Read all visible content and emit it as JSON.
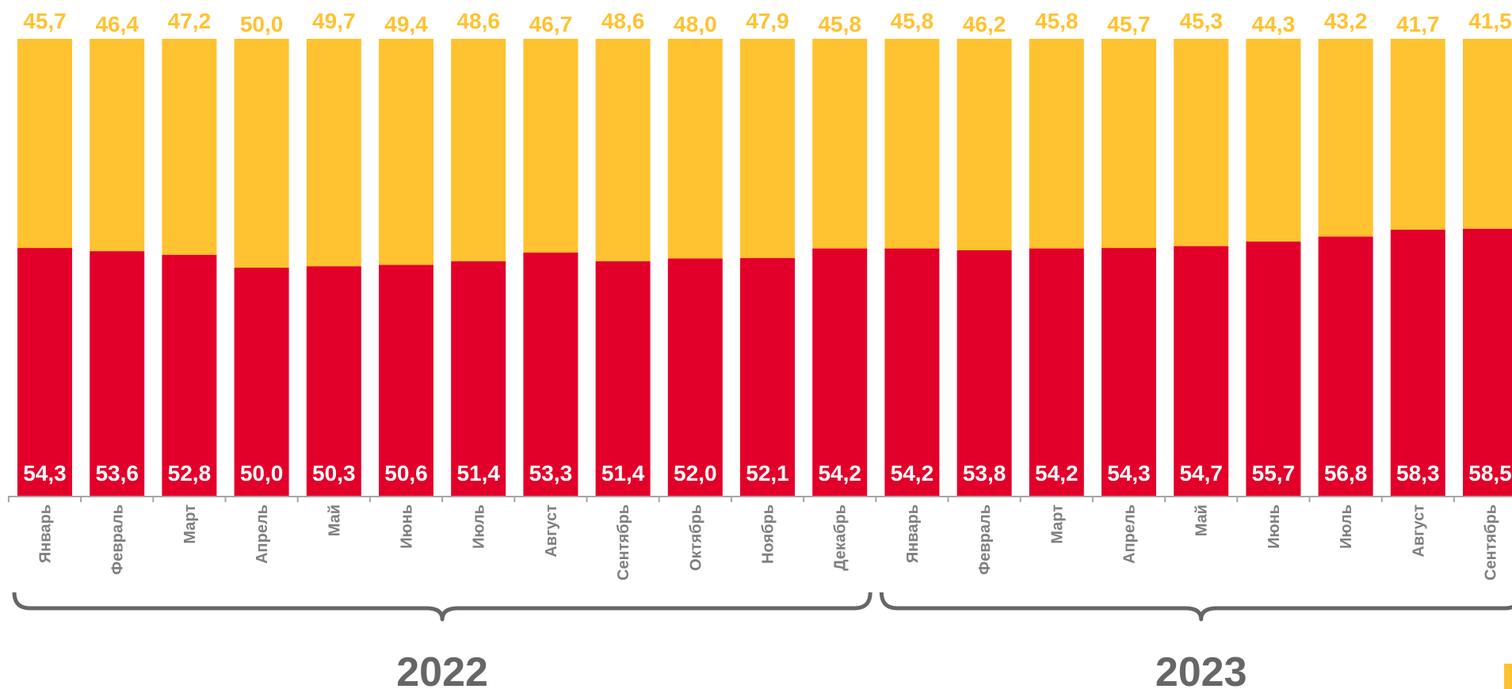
{
  "colors": {
    "top_series": "#FFC230",
    "bottom_series": "#E2002B",
    "axis": "#a6a6a6",
    "brace": "#666666",
    "month_label": "#7f7f7f",
    "year_label": "#666666",
    "corner_mark": "#FFC230"
  },
  "chart_data": {
    "type": "bar",
    "stacked": true,
    "normalized_to": 100,
    "categories": [
      "Январь",
      "Февраль",
      "Март",
      "Апрель",
      "Май",
      "Июнь",
      "Июль",
      "Август",
      "Сентябрь",
      "Октябрь",
      "Ноябрь",
      "Декабрь",
      "Январь",
      "Февраль",
      "Март",
      "Апрель",
      "Май",
      "Июнь",
      "Июль",
      "Август",
      "Сентябрь"
    ],
    "groups": [
      {
        "label": "2022",
        "start": 0,
        "end": 11
      },
      {
        "label": "2023",
        "start": 12,
        "end": 20
      }
    ],
    "series": [
      {
        "values": [
          54.3,
          53.6,
          52.8,
          50.0,
          50.3,
          50.6,
          51.4,
          53.3,
          51.4,
          52.0,
          52.1,
          54.2,
          54.2,
          53.8,
          54.2,
          54.3,
          54.7,
          55.7,
          56.8,
          58.3,
          58.5
        ],
        "labels": [
          "54,3",
          "53,6",
          "52,8",
          "50,0",
          "50,3",
          "50,6",
          "51,4",
          "53,3",
          "51,4",
          "52,0",
          "52,1",
          "54,2",
          "54,2",
          "53,8",
          "54,2",
          "54,3",
          "54,7",
          "55,7",
          "56,8",
          "58,3",
          "58,5"
        ]
      },
      {
        "values": [
          45.7,
          46.4,
          47.2,
          50.0,
          49.7,
          49.4,
          48.6,
          46.7,
          48.6,
          48.0,
          47.9,
          45.8,
          45.8,
          46.2,
          45.8,
          45.7,
          45.3,
          44.3,
          43.2,
          41.7,
          41.5
        ],
        "labels": [
          "45,7",
          "46,4",
          "47,2",
          "50,0",
          "49,7",
          "49,4",
          "48,6",
          "46,7",
          "48,6",
          "48,0",
          "47,9",
          "45,8",
          "45,8",
          "46,2",
          "45,8",
          "45,7",
          "45,3",
          "44,3",
          "43,2",
          "41,7",
          "41,5"
        ]
      }
    ],
    "ylim": [
      0,
      100
    ],
    "grid": false,
    "legend": "none",
    "title": "",
    "xlabel": "",
    "ylabel": ""
  }
}
